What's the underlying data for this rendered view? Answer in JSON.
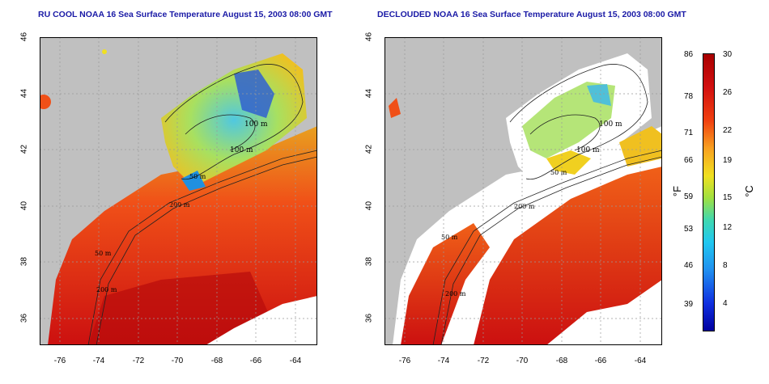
{
  "left_map": {
    "title": "RU COOL NOAA 16 Sea Surface Temperature August 15, 2003 08:00 GMT",
    "contour_labels": [
      "100 m",
      "100 m",
      "50 m",
      "200 m",
      "50 m",
      "200 m"
    ]
  },
  "right_map": {
    "title": "DECLOUDED NOAA 16 Sea Surface Temperature August 15, 2003 08:00 GMT",
    "contour_labels": [
      "100 m",
      "100 m",
      "50 m",
      "200 m",
      "50 m",
      "200 m"
    ]
  },
  "axes": {
    "lat_ticks": [
      "46",
      "44",
      "42",
      "40",
      "38",
      "36"
    ],
    "lon_ticks": [
      "-76",
      "-74",
      "-72",
      "-70",
      "-68",
      "-66",
      "-64"
    ]
  },
  "colorbar": {
    "fahrenheit_ticks": [
      "86",
      "78",
      "71",
      "66",
      "59",
      "53",
      "46",
      "39"
    ],
    "celsius_ticks": [
      "30",
      "26",
      "22",
      "19",
      "15",
      "12",
      "8",
      "4"
    ],
    "fahrenheit_unit": "°F",
    "celsius_unit": "°C"
  },
  "colors": {
    "land": "#c0c0c0",
    "title": "#1a1aa6",
    "warm": "#d42010",
    "cool": "#30a0e0"
  }
}
